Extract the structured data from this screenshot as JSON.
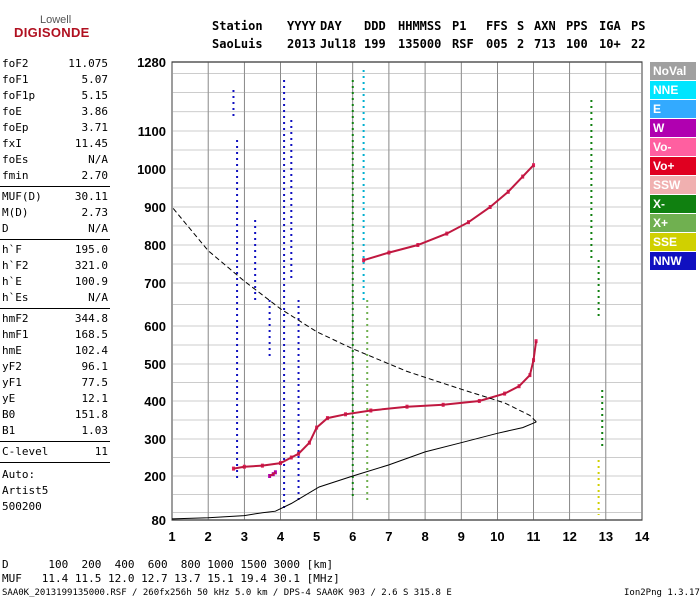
{
  "logo": {
    "line1": "Lowell",
    "line2": "DIGISONDE"
  },
  "header": {
    "labels": [
      "Station",
      "YYYY",
      "DAY",
      "DDD",
      "HHMMSS",
      "P1",
      "FFS",
      "S",
      "AXN",
      "PPS",
      "IGA",
      "PS"
    ],
    "values": [
      "SaoLuis",
      "2013",
      "Jul18",
      "199",
      "135000",
      "RSF",
      "005",
      "2",
      "713",
      "100",
      "10+",
      "22"
    ]
  },
  "params": [
    {
      "group": [
        {
          "name": "foF2",
          "value": "11.075"
        },
        {
          "name": "foF1",
          "value": "5.07"
        },
        {
          "name": "foF1p",
          "value": "5.15"
        },
        {
          "name": "foE",
          "value": "3.86"
        },
        {
          "name": "foEp",
          "value": "3.71"
        },
        {
          "name": "fxI",
          "value": "11.45"
        },
        {
          "name": "foEs",
          "value": "N/A"
        },
        {
          "name": "fmin",
          "value": "2.70"
        }
      ]
    },
    {
      "group": [
        {
          "name": "MUF(D)",
          "value": "30.11"
        },
        {
          "name": "M(D)",
          "value": "2.73"
        },
        {
          "name": "D",
          "value": "N/A"
        }
      ]
    },
    {
      "group": [
        {
          "name": "h`F",
          "value": "195.0"
        },
        {
          "name": "h`F2",
          "value": "321.0"
        },
        {
          "name": "h`E",
          "value": "100.9"
        },
        {
          "name": "h`Es",
          "value": "N/A"
        }
      ]
    },
    {
      "group": [
        {
          "name": "hmF2",
          "value": "344.8"
        },
        {
          "name": "hmF1",
          "value": "168.5"
        },
        {
          "name": "hmE",
          "value": "102.4"
        },
        {
          "name": "yF2",
          "value": "96.1"
        },
        {
          "name": "yF1",
          "value": "77.5"
        },
        {
          "name": "yE",
          "value": "12.1"
        },
        {
          "name": "B0",
          "value": "151.8"
        },
        {
          "name": "B1",
          "value": "1.03"
        }
      ]
    },
    {
      "group": [
        {
          "name": "C-level",
          "value": "11"
        }
      ]
    }
  ],
  "notes": [
    "Auto:",
    "Artist5",
    "500200"
  ],
  "legend": [
    {
      "label": "NoVal",
      "color": "#a0a0a0"
    },
    {
      "label": "NNE",
      "color": "#00e5ff"
    },
    {
      "label": "E",
      "color": "#33aaff"
    },
    {
      "label": "W",
      "color": "#b000b0"
    },
    {
      "label": "Vo-",
      "color": "#ff5fa0"
    },
    {
      "label": "Vo+",
      "color": "#e00020"
    },
    {
      "label": "SSW",
      "color": "#f0b0b0"
    },
    {
      "label": "X-",
      "color": "#108010"
    },
    {
      "label": "X+",
      "color": "#70b050"
    },
    {
      "label": "SSE",
      "color": "#d0d000"
    },
    {
      "label": "NNW",
      "color": "#1010c0"
    }
  ],
  "chart_data": {
    "type": "scatter",
    "x_ticks": [
      "1",
      "2",
      "3",
      "4",
      "5",
      "6",
      "7",
      "8",
      "9",
      "10",
      "11",
      "12",
      "13",
      "14"
    ],
    "y_ticks": [
      "80",
      "200",
      "300",
      "400",
      "500",
      "600",
      "700",
      "800",
      "900",
      "1000",
      "1100",
      "1280"
    ],
    "xlim": [
      1,
      14
    ],
    "series": [
      {
        "name": "O-trace",
        "points": [
          [
            2.7,
            220
          ],
          [
            3.0,
            225
          ],
          [
            3.5,
            228
          ],
          [
            4.0,
            235
          ],
          [
            4.3,
            250
          ],
          [
            4.5,
            260
          ],
          [
            4.8,
            290
          ],
          [
            5.0,
            330
          ],
          [
            5.3,
            355
          ],
          [
            5.8,
            365
          ],
          [
            6.5,
            375
          ],
          [
            7.5,
            385
          ],
          [
            8.5,
            390
          ],
          [
            9.5,
            400
          ],
          [
            10.2,
            420
          ],
          [
            10.6,
            440
          ],
          [
            10.9,
            470
          ],
          [
            11.0,
            510
          ],
          [
            11.07,
            560
          ]
        ]
      },
      {
        "name": "X-trace",
        "points": [
          [
            6.3,
            760
          ],
          [
            7.0,
            780
          ],
          [
            7.8,
            800
          ],
          [
            8.6,
            830
          ],
          [
            9.2,
            860
          ],
          [
            9.8,
            900
          ],
          [
            10.3,
            940
          ],
          [
            10.7,
            980
          ],
          [
            11.0,
            1010
          ]
        ]
      },
      {
        "name": "E-trace",
        "points": [
          [
            3.7,
            200
          ],
          [
            3.8,
            205
          ],
          [
            3.86,
            210
          ]
        ]
      }
    ],
    "profile": [
      [
        1,
        83
      ],
      [
        2,
        86
      ],
      [
        3,
        92
      ],
      [
        3.5,
        100
      ],
      [
        3.86,
        104
      ],
      [
        4.3,
        125
      ],
      [
        5.07,
        170
      ],
      [
        6,
        200
      ],
      [
        7,
        230
      ],
      [
        8,
        265
      ],
      [
        9,
        290
      ],
      [
        10,
        315
      ],
      [
        10.7,
        330
      ],
      [
        11.075,
        345
      ],
      [
        10.9,
        362
      ],
      [
        10.2,
        395
      ],
      [
        9,
        432
      ],
      [
        7.5,
        480
      ],
      [
        6,
        540
      ],
      [
        5,
        585
      ],
      [
        4,
        640
      ],
      [
        3,
        705
      ],
      [
        2,
        785
      ],
      [
        1,
        900
      ]
    ],
    "mufd_label": "D",
    "mufd_values": [
      "100",
      "200",
      "400",
      "600",
      "800",
      "1000",
      "1500",
      "3000"
    ],
    "mufd_unit": "[km]",
    "muf_label": "MUF",
    "muf_values": [
      "11.4",
      "11.5",
      "12.0",
      "12.7",
      "13.7",
      "15.1",
      "19.4",
      "30.1"
    ],
    "muf_unit": "[MHz]"
  },
  "bottom": {
    "d_line": "D      100  200  400  600  800 1000 1500 3000 [km]",
    "muf_line": "MUF   11.4 11.5 12.0 12.7 13.7 15.1 19.4 30.1 [MHz]"
  },
  "footer": {
    "left": "SAA0K_2013199135000.RSF / 260fx256h 50 kHz 5.0 km / DPS-4 SAA0K 903 / 2.6 S 315.8 E",
    "right": "Ion2Png 1.3.17"
  }
}
